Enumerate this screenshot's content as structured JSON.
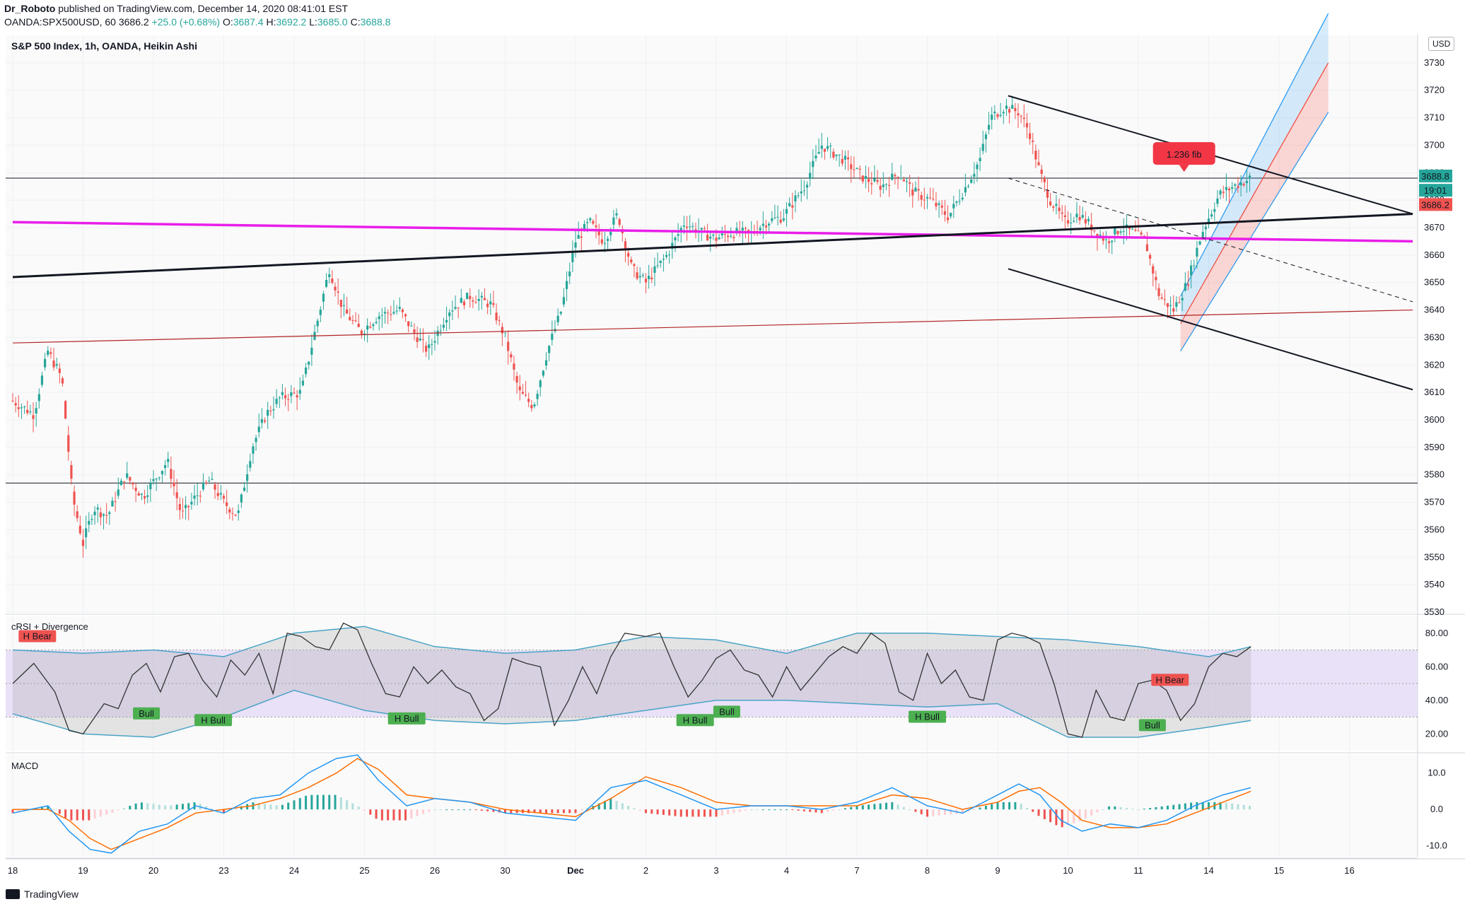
{
  "header": {
    "publisher": "Dr_Roboto",
    "published_text": "published on TradingView.com, December 14, 2020 08:41:01 EST",
    "symbol": "OANDA:SPX500USD, 60",
    "last": "3686.2",
    "change": "+25.0 (+0.68%)",
    "ohlc": {
      "O": "3687.4",
      "H": "3692.2",
      "L": "3685.0",
      "C": "3688.8"
    }
  },
  "usd_button": "USD",
  "footer": {
    "brand": "TradingView"
  },
  "colors": {
    "bull": "#26a69a",
    "bear": "#ef5350",
    "magenta": "#e91ee9",
    "channel_blue": "#2196f3",
    "channel_red": "#f44336",
    "crsi_band": "#e1d5f5",
    "macd_line": "#2196f3",
    "signal_line": "#ff6d00"
  },
  "chart_data": [
    {
      "type": "candlestick",
      "title": "S&P 500 Index, 1h, OANDA, Heikin Ashi",
      "x_ticks": [
        "18",
        "19",
        "20",
        "23",
        "24",
        "25",
        "26",
        "30",
        "Dec",
        "2",
        "3",
        "4",
        "7",
        "8",
        "9",
        "10",
        "11",
        "14",
        "15",
        "16"
      ],
      "ylim": [
        3530,
        3740
      ],
      "y_ticks": [
        3530,
        3540,
        3550,
        3560,
        3570,
        3580,
        3590,
        3600,
        3610,
        3620,
        3630,
        3640,
        3650,
        3660,
        3670,
        3680,
        3690,
        3700,
        3710,
        3720,
        3730
      ],
      "price_labels": {
        "last": "3688.8",
        "countdown": "19:01",
        "prev": "3686.2"
      },
      "annotation": "1.236 fib",
      "horizontal_levels": [
        3688.0,
        3577.0
      ],
      "price_path": [
        [
          0.0,
          3607
        ],
        [
          0.3,
          3602
        ],
        [
          0.5,
          3625
        ],
        [
          0.7,
          3615
        ],
        [
          0.85,
          3572
        ],
        [
          1.0,
          3555
        ],
        [
          1.15,
          3568
        ],
        [
          1.35,
          3565
        ],
        [
          1.6,
          3580
        ],
        [
          1.85,
          3572
        ],
        [
          2.2,
          3585
        ],
        [
          2.4,
          3565
        ],
        [
          2.6,
          3572
        ],
        [
          2.8,
          3578
        ],
        [
          3.0,
          3570
        ],
        [
          3.2,
          3565
        ],
        [
          3.4,
          3590
        ],
        [
          3.6,
          3602
        ],
        [
          3.8,
          3608
        ],
        [
          4.1,
          3610
        ],
        [
          4.5,
          3655
        ],
        [
          4.7,
          3640
        ],
        [
          4.95,
          3632
        ],
        [
          5.2,
          3638
        ],
        [
          5.5,
          3640
        ],
        [
          5.7,
          3632
        ],
        [
          5.9,
          3625
        ],
        [
          6.2,
          3640
        ],
        [
          6.5,
          3645
        ],
        [
          6.8,
          3642
        ],
        [
          7.0,
          3630
        ],
        [
          7.2,
          3610
        ],
        [
          7.4,
          3605
        ],
        [
          7.6,
          3625
        ],
        [
          7.8,
          3640
        ],
        [
          8.0,
          3665
        ],
        [
          8.2,
          3672
        ],
        [
          8.4,
          3665
        ],
        [
          8.6,
          3675
        ],
        [
          8.8,
          3655
        ],
        [
          9.0,
          3650
        ],
        [
          9.3,
          3660
        ],
        [
          9.55,
          3672
        ],
        [
          9.8,
          3668
        ],
        [
          10.0,
          3666
        ],
        [
          10.2,
          3668
        ],
        [
          10.5,
          3668
        ],
        [
          10.7,
          3672
        ],
        [
          10.95,
          3674
        ],
        [
          11.25,
          3685
        ],
        [
          11.5,
          3700
        ],
        [
          11.8,
          3695
        ],
        [
          12.1,
          3688
        ],
        [
          12.35,
          3685
        ],
        [
          12.6,
          3690
        ],
        [
          12.8,
          3683
        ],
        [
          13.05,
          3680
        ],
        [
          13.3,
          3674
        ],
        [
          13.55,
          3685
        ],
        [
          13.75,
          3695
        ],
        [
          13.9,
          3710
        ],
        [
          14.1,
          3714
        ],
        [
          14.3,
          3712
        ],
        [
          14.45,
          3705
        ],
        [
          14.6,
          3690
        ],
        [
          14.75,
          3680
        ],
        [
          14.95,
          3672
        ],
        [
          15.15,
          3675
        ],
        [
          15.35,
          3670
        ],
        [
          15.55,
          3665
        ],
        [
          15.75,
          3670
        ],
        [
          15.95,
          3668
        ],
        [
          16.1,
          3665
        ],
        [
          16.3,
          3645
        ],
        [
          16.5,
          3640
        ],
        [
          16.7,
          3650
        ],
        [
          16.9,
          3668
        ],
        [
          17.15,
          3682
        ],
        [
          17.35,
          3685
        ],
        [
          17.6,
          3688
        ]
      ],
      "lines": [
        {
          "name": "magenta",
          "from": [
            0.0,
            3672
          ],
          "to": [
            19.9,
            3665
          ]
        },
        {
          "name": "black-thick",
          "from": [
            0.0,
            3652
          ],
          "to": [
            19.9,
            3675
          ]
        },
        {
          "name": "brown",
          "from": [
            0.0,
            3628
          ],
          "to": [
            19.9,
            3640
          ]
        },
        {
          "name": "channel-upper",
          "from": [
            14.15,
            3718
          ],
          "to": [
            19.9,
            3675
          ]
        },
        {
          "name": "channel-lower",
          "from": [
            14.15,
            3655
          ],
          "to": [
            19.9,
            3611
          ]
        },
        {
          "name": "dashed-mid",
          "from": [
            14.15,
            3688
          ],
          "to": [
            19.9,
            3643
          ]
        }
      ]
    },
    {
      "type": "line",
      "title": "cRSI + Divergence",
      "ylim": [
        10,
        90
      ],
      "y_ticks": [
        20.0,
        40.0,
        60.0,
        80.0
      ],
      "band": [
        30,
        70
      ],
      "labels": [
        "H Bear",
        "Bull",
        "H Bull",
        "H Bull",
        "H Bull",
        "Bull",
        "H Bull",
        "H Bear",
        "Bull"
      ],
      "crsi": [
        [
          0.0,
          50
        ],
        [
          0.3,
          62
        ],
        [
          0.6,
          45
        ],
        [
          0.8,
          22
        ],
        [
          1.0,
          20
        ],
        [
          1.3,
          38
        ],
        [
          1.5,
          35
        ],
        [
          1.7,
          55
        ],
        [
          1.9,
          62
        ],
        [
          2.1,
          45
        ],
        [
          2.3,
          66
        ],
        [
          2.5,
          68
        ],
        [
          2.7,
          52
        ],
        [
          2.9,
          42
        ],
        [
          3.1,
          64
        ],
        [
          3.3,
          55
        ],
        [
          3.5,
          68
        ],
        [
          3.7,
          44
        ],
        [
          3.9,
          80
        ],
        [
          4.1,
          78
        ],
        [
          4.3,
          72
        ],
        [
          4.5,
          70
        ],
        [
          4.7,
          86
        ],
        [
          4.9,
          82
        ],
        [
          5.1,
          62
        ],
        [
          5.3,
          44
        ],
        [
          5.5,
          42
        ],
        [
          5.7,
          60
        ],
        [
          5.9,
          50
        ],
        [
          6.1,
          58
        ],
        [
          6.3,
          48
        ],
        [
          6.5,
          44
        ],
        [
          6.7,
          28
        ],
        [
          6.9,
          35
        ],
        [
          7.1,
          65
        ],
        [
          7.3,
          62
        ],
        [
          7.5,
          60
        ],
        [
          7.7,
          25
        ],
        [
          7.9,
          40
        ],
        [
          8.1,
          60
        ],
        [
          8.3,
          44
        ],
        [
          8.5,
          66
        ],
        [
          8.7,
          80
        ],
        [
          9.0,
          78
        ],
        [
          9.2,
          80
        ],
        [
          9.4,
          60
        ],
        [
          9.6,
          42
        ],
        [
          9.8,
          52
        ],
        [
          10.0,
          65
        ],
        [
          10.2,
          70
        ],
        [
          10.4,
          58
        ],
        [
          10.6,
          55
        ],
        [
          10.8,
          42
        ],
        [
          11.0,
          60
        ],
        [
          11.2,
          46
        ],
        [
          11.4,
          56
        ],
        [
          11.6,
          66
        ],
        [
          11.8,
          72
        ],
        [
          12.0,
          68
        ],
        [
          12.2,
          80
        ],
        [
          12.4,
          74
        ],
        [
          12.6,
          45
        ],
        [
          12.8,
          40
        ],
        [
          13.0,
          68
        ],
        [
          13.2,
          50
        ],
        [
          13.4,
          58
        ],
        [
          13.6,
          42
        ],
        [
          13.8,
          40
        ],
        [
          14.0,
          76
        ],
        [
          14.2,
          80
        ],
        [
          14.4,
          78
        ],
        [
          14.6,
          74
        ],
        [
          14.8,
          50
        ],
        [
          15.0,
          20
        ],
        [
          15.2,
          18
        ],
        [
          15.4,
          46
        ],
        [
          15.6,
          30
        ],
        [
          15.8,
          28
        ],
        [
          16.0,
          50
        ],
        [
          16.2,
          52
        ],
        [
          16.4,
          46
        ],
        [
          16.6,
          28
        ],
        [
          16.8,
          38
        ],
        [
          17.0,
          60
        ],
        [
          17.2,
          68
        ],
        [
          17.4,
          66
        ],
        [
          17.6,
          72
        ]
      ],
      "upper_band": [
        [
          0.0,
          70
        ],
        [
          1.0,
          68
        ],
        [
          2.0,
          70
        ],
        [
          3.0,
          66
        ],
        [
          4.0,
          80
        ],
        [
          5.0,
          84
        ],
        [
          6.0,
          72
        ],
        [
          7.0,
          68
        ],
        [
          8.0,
          70
        ],
        [
          9.0,
          78
        ],
        [
          10.0,
          76
        ],
        [
          11.0,
          68
        ],
        [
          12.0,
          80
        ],
        [
          13.0,
          80
        ],
        [
          14.0,
          78
        ],
        [
          15.0,
          76
        ],
        [
          16.0,
          72
        ],
        [
          17.0,
          66
        ],
        [
          17.6,
          72
        ]
      ],
      "lower_band": [
        [
          0.0,
          32
        ],
        [
          1.0,
          20
        ],
        [
          2.0,
          18
        ],
        [
          3.0,
          30
        ],
        [
          4.0,
          46
        ],
        [
          5.0,
          34
        ],
        [
          6.0,
          28
        ],
        [
          7.0,
          26
        ],
        [
          8.0,
          28
        ],
        [
          9.0,
          34
        ],
        [
          10.0,
          40
        ],
        [
          11.0,
          40
        ],
        [
          12.0,
          38
        ],
        [
          13.0,
          36
        ],
        [
          14.0,
          38
        ],
        [
          15.0,
          18
        ],
        [
          16.0,
          18
        ],
        [
          17.0,
          24
        ],
        [
          17.6,
          28
        ]
      ]
    },
    {
      "type": "line",
      "title": "MACD",
      "ylim": [
        -13,
        15
      ],
      "y_ticks": [
        -10.0,
        0.0,
        10.0
      ],
      "macd": [
        [
          0.0,
          -1
        ],
        [
          0.5,
          1
        ],
        [
          0.8,
          -6
        ],
        [
          1.1,
          -11
        ],
        [
          1.4,
          -12
        ],
        [
          1.8,
          -6
        ],
        [
          2.2,
          -4
        ],
        [
          2.6,
          1
        ],
        [
          3.0,
          -1
        ],
        [
          3.4,
          3
        ],
        [
          3.8,
          4
        ],
        [
          4.2,
          10
        ],
        [
          4.6,
          14
        ],
        [
          4.9,
          15
        ],
        [
          5.2,
          8
        ],
        [
          5.6,
          1
        ],
        [
          6.0,
          3
        ],
        [
          6.5,
          2
        ],
        [
          7.0,
          -1
        ],
        [
          7.5,
          -2
        ],
        [
          8.0,
          -3
        ],
        [
          8.5,
          6
        ],
        [
          9.0,
          8
        ],
        [
          9.5,
          4
        ],
        [
          10.0,
          0
        ],
        [
          10.5,
          1
        ],
        [
          11.0,
          1
        ],
        [
          11.5,
          0
        ],
        [
          12.0,
          2
        ],
        [
          12.5,
          6
        ],
        [
          13.0,
          1
        ],
        [
          13.5,
          -1
        ],
        [
          14.0,
          4
        ],
        [
          14.3,
          7
        ],
        [
          14.6,
          4
        ],
        [
          14.9,
          -3
        ],
        [
          15.2,
          -6
        ],
        [
          15.6,
          -4
        ],
        [
          16.0,
          -5
        ],
        [
          16.4,
          -3
        ],
        [
          16.8,
          1
        ],
        [
          17.2,
          4
        ],
        [
          17.6,
          6
        ]
      ],
      "signal": [
        [
          0.0,
          0
        ],
        [
          0.5,
          0
        ],
        [
          0.8,
          -3
        ],
        [
          1.1,
          -8
        ],
        [
          1.4,
          -11
        ],
        [
          1.8,
          -8
        ],
        [
          2.2,
          -5
        ],
        [
          2.6,
          -1
        ],
        [
          3.0,
          0
        ],
        [
          3.4,
          1
        ],
        [
          3.8,
          3
        ],
        [
          4.2,
          6
        ],
        [
          4.6,
          10
        ],
        [
          4.9,
          14
        ],
        [
          5.2,
          11
        ],
        [
          5.6,
          4
        ],
        [
          6.0,
          3
        ],
        [
          6.5,
          2
        ],
        [
          7.0,
          0
        ],
        [
          7.5,
          -1
        ],
        [
          8.0,
          -2
        ],
        [
          8.5,
          3
        ],
        [
          9.0,
          9
        ],
        [
          9.5,
          6
        ],
        [
          10.0,
          2
        ],
        [
          10.5,
          1
        ],
        [
          11.0,
          1
        ],
        [
          11.5,
          1
        ],
        [
          12.0,
          1
        ],
        [
          12.5,
          4
        ],
        [
          13.0,
          3
        ],
        [
          13.5,
          0
        ],
        [
          14.0,
          2
        ],
        [
          14.3,
          5
        ],
        [
          14.6,
          6
        ],
        [
          14.9,
          2
        ],
        [
          15.2,
          -3
        ],
        [
          15.6,
          -5
        ],
        [
          16.0,
          -5
        ],
        [
          16.4,
          -4
        ],
        [
          16.8,
          -1
        ],
        [
          17.2,
          2
        ],
        [
          17.6,
          5
        ]
      ]
    }
  ]
}
